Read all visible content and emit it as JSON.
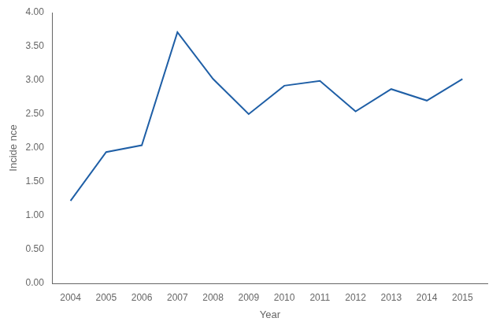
{
  "chart_data": {
    "type": "line",
    "xlabel": "Year",
    "ylabel": "Incide nce",
    "x": [
      2004,
      2005,
      2006,
      2007,
      2008,
      2009,
      2010,
      2011,
      2012,
      2013,
      2014,
      2015
    ],
    "values": [
      1.22,
      1.94,
      2.04,
      3.71,
      3.02,
      2.5,
      2.92,
      2.99,
      2.54,
      2.87,
      2.7,
      3.02
    ],
    "color": "#1f5fa6",
    "xlim": [
      2003.5,
      2015.7
    ],
    "ylim": [
      0.0,
      4.0
    ],
    "xticks": [
      2004,
      2005,
      2006,
      2007,
      2008,
      2009,
      2010,
      2011,
      2012,
      2013,
      2014,
      2015
    ],
    "yticks": [
      {
        "value": 0.0,
        "label": "0.00"
      },
      {
        "value": 0.5,
        "label": "0.50"
      },
      {
        "value": 1.0,
        "label": "1.00"
      },
      {
        "value": 1.5,
        "label": "1.50"
      },
      {
        "value": 2.0,
        "label": "2.00"
      },
      {
        "value": 2.5,
        "label": "2.50"
      },
      {
        "value": 3.0,
        "label": "3.00"
      },
      {
        "value": 3.5,
        "label": "3.50"
      },
      {
        "value": 4.0,
        "label": "4.00"
      }
    ],
    "grid": false
  }
}
